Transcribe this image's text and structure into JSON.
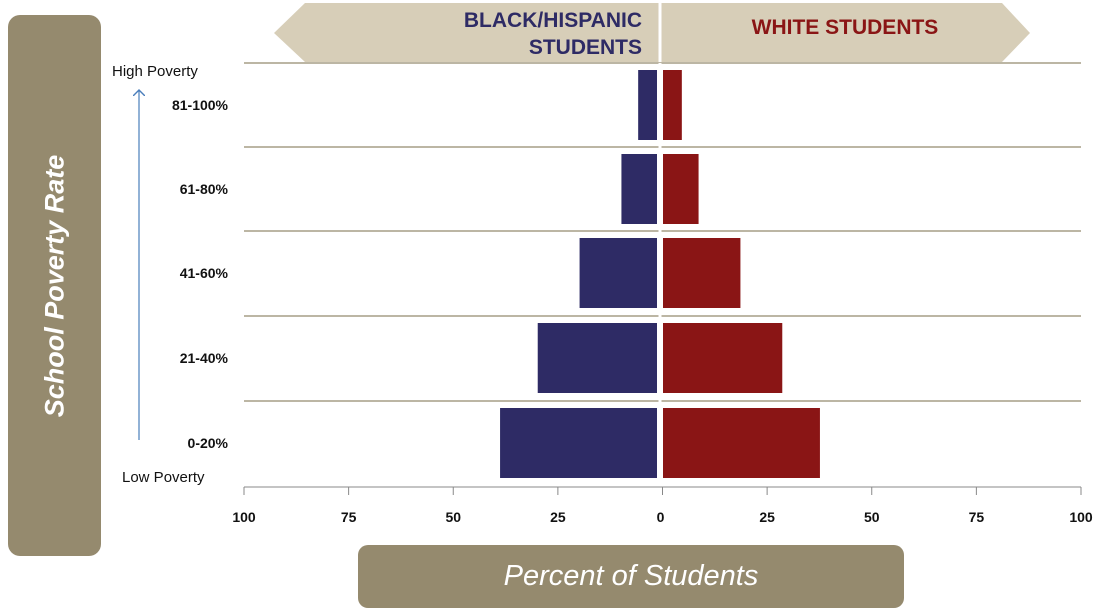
{
  "side_label": "School Poverty Rate",
  "bottom_label": "Percent of Students",
  "headers": {
    "left_line1": "BLACK/HISPANIC",
    "left_line2": "STUDENTS",
    "right": "WHITE STUDENTS"
  },
  "poverty_labels": {
    "high": "High Poverty",
    "low": "Low Poverty"
  },
  "colors": {
    "panel": "#958a6e",
    "banner": "#d7ceb8",
    "left_series": "#2e2b65",
    "right_series": "#8a1515",
    "left_header_text": "#2e2b65",
    "right_header_text": "#8a1515"
  },
  "chart_data": {
    "type": "bar",
    "orientation": "horizontal-diverging",
    "categories": [
      "81-100%",
      "61-80%",
      "41-60%",
      "21-40%",
      "0-20%"
    ],
    "series": [
      {
        "name": "BLACK/HISPANIC STUDENTS",
        "side": "left",
        "values": [
          4.5,
          8.5,
          18.5,
          28.5,
          37.5
        ]
      },
      {
        "name": "WHITE STUDENTS",
        "side": "right",
        "values": [
          4.5,
          8.5,
          18.5,
          28.5,
          37.5
        ]
      }
    ],
    "xticks": [
      "100",
      "75",
      "50",
      "25",
      "0",
      "25",
      "50",
      "75",
      "100"
    ],
    "xlim": [
      -100,
      100
    ],
    "xlabel": "Percent of Students",
    "ylabel": "School Poverty Rate",
    "grid": "horizontal separators"
  }
}
